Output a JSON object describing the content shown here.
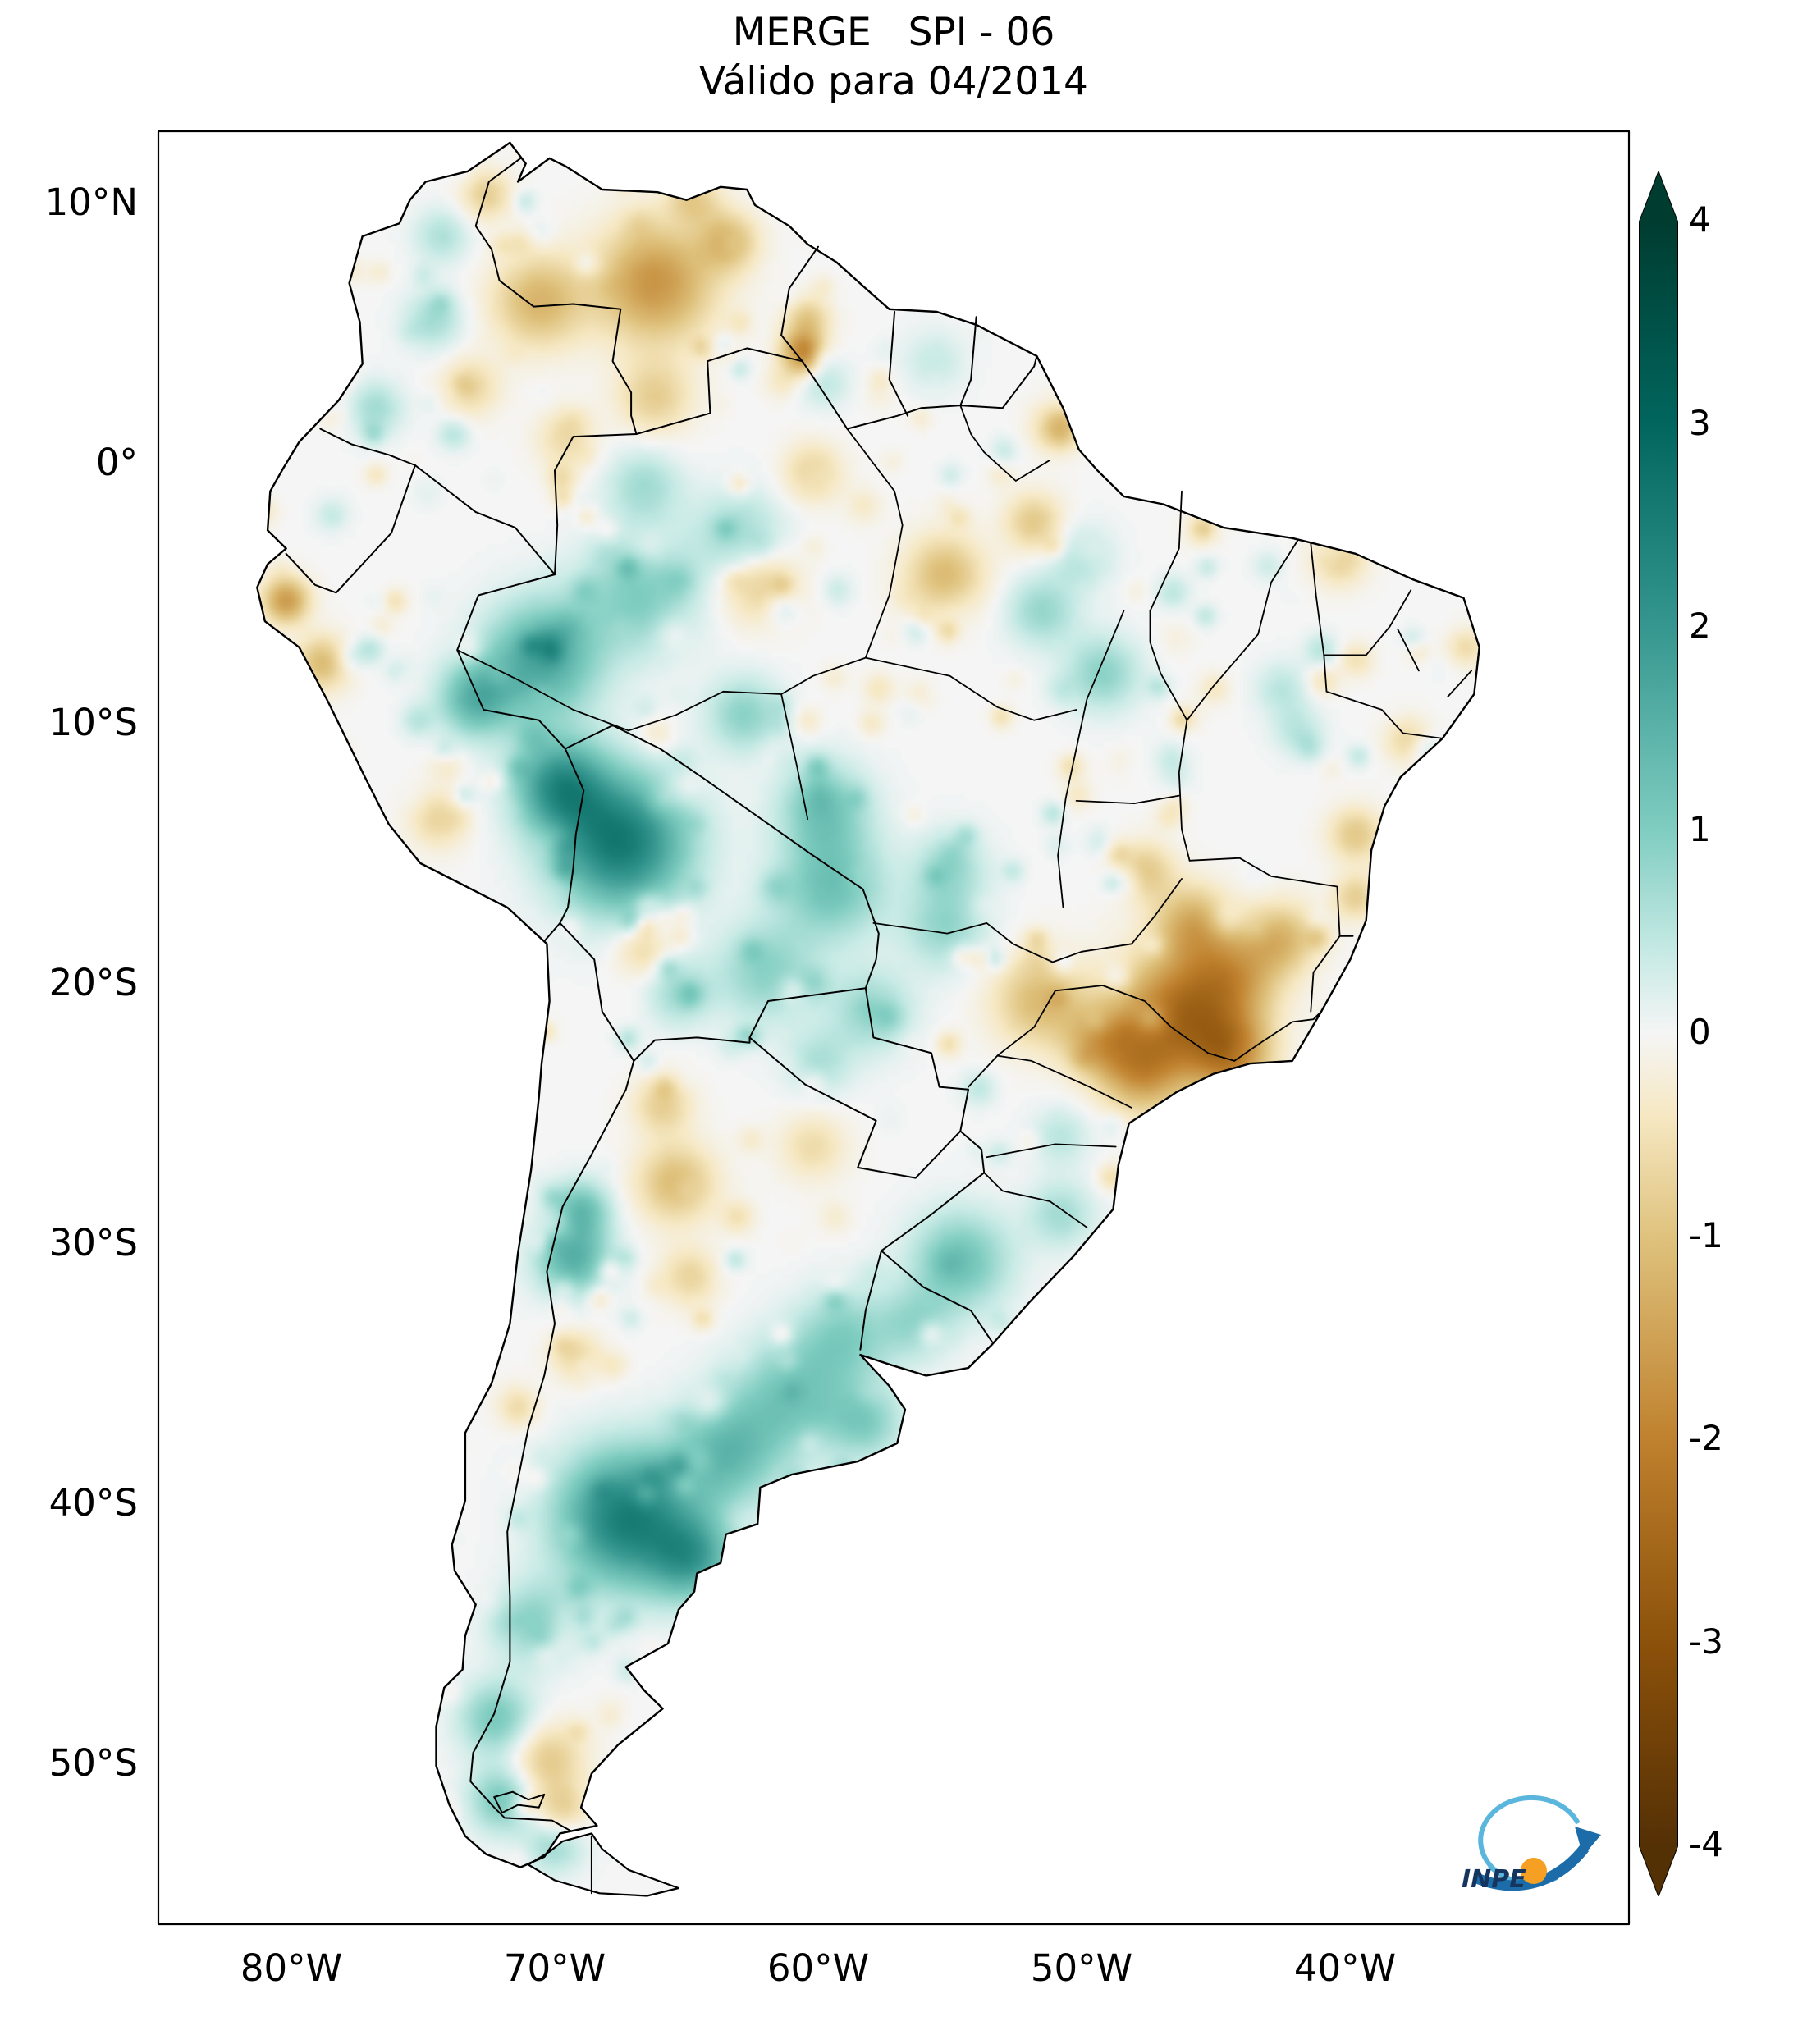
{
  "header": {
    "title": "MERGE   SPI - 06",
    "subtitle": "Válido para 04/2014"
  },
  "axes": {
    "lat_ticks": [
      {
        "label": "10°N",
        "lat": 10
      },
      {
        "label": "0°",
        "lat": 0
      },
      {
        "label": "10°S",
        "lat": -10
      },
      {
        "label": "20°S",
        "lat": -20
      },
      {
        "label": "30°S",
        "lat": -30
      },
      {
        "label": "40°S",
        "lat": -40
      },
      {
        "label": "50°S",
        "lat": -50
      }
    ],
    "lon_ticks": [
      {
        "label": "80°W",
        "lon": -80
      },
      {
        "label": "70°W",
        "lon": -70
      },
      {
        "label": "60°W",
        "lon": -60
      },
      {
        "label": "50°W",
        "lon": -50
      },
      {
        "label": "40°W",
        "lon": -40
      }
    ]
  },
  "colorbar": {
    "ticks": [
      "4",
      "3",
      "2",
      "1",
      "0",
      "-1",
      "-2",
      "-3",
      "-4"
    ],
    "range": [
      -4,
      4
    ],
    "extend": "both",
    "colormap": "BrBG",
    "stops": [
      {
        "v": -4,
        "c": "#543005"
      },
      {
        "v": -3,
        "c": "#8c510a"
      },
      {
        "v": -2,
        "c": "#bf812d"
      },
      {
        "v": -1,
        "c": "#dfc27d"
      },
      {
        "v": -0.4,
        "c": "#f6e8c3"
      },
      {
        "v": 0,
        "c": "#f5f5f5"
      },
      {
        "v": 0.4,
        "c": "#c7eae5"
      },
      {
        "v": 1,
        "c": "#80cdc1"
      },
      {
        "v": 2,
        "c": "#35978f"
      },
      {
        "v": 3,
        "c": "#01665e"
      },
      {
        "v": 4,
        "c": "#003c30"
      }
    ]
  },
  "logo": {
    "text": "INPE",
    "arc_color": "#5ab6dc",
    "arrow_color": "#1b6ca8",
    "ball_color": "#f5a023",
    "text_color": "#16355e"
  },
  "chart_data": {
    "type": "heatmap",
    "title": "MERGE   SPI - 06",
    "subtitle": "Válido para 04/2014",
    "variable": "SPI-06",
    "valid_for": "04/2014",
    "extent": {
      "lon": [
        -85.0,
        -29.6
      ],
      "lat": [
        -56.1,
        12.8
      ]
    },
    "colorbar_range": [
      -4,
      4
    ],
    "legend_position": "right",
    "regions_format": [
      "lat",
      "lon",
      "radius_deg",
      "spi"
    ],
    "regions": [
      [
        -14.5,
        -67.5,
        3.2,
        2.6
      ],
      [
        -12.3,
        -69.8,
        2.2,
        2.0
      ],
      [
        -7.5,
        -70.5,
        2.8,
        1.7
      ],
      [
        -9.0,
        -73.0,
        1.8,
        1.4
      ],
      [
        -5.0,
        -66.8,
        2.8,
        1.0
      ],
      [
        -2.8,
        -63.0,
        2.2,
        0.8
      ],
      [
        -16.2,
        -59.5,
        2.6,
        1.2
      ],
      [
        -13.2,
        -59.8,
        2.2,
        1.1
      ],
      [
        -19.5,
        -62.0,
        2.4,
        0.9
      ],
      [
        -21.0,
        -58.0,
        2.0,
        0.8
      ],
      [
        -17.8,
        -55.2,
        2.0,
        0.8
      ],
      [
        -15.5,
        -55.0,
        1.8,
        0.7
      ],
      [
        -8.0,
        -49.2,
        1.8,
        0.9
      ],
      [
        -5.6,
        -51.5,
        1.7,
        0.8
      ],
      [
        -3.5,
        -50.0,
        1.5,
        0.6
      ],
      [
        -40.5,
        -67.3,
        3.2,
        2.5
      ],
      [
        -42.0,
        -64.8,
        2.0,
        1.6
      ],
      [
        -38.0,
        -63.5,
        2.6,
        1.3
      ],
      [
        -35.8,
        -61.0,
        2.8,
        1.1
      ],
      [
        -33.5,
        -59.0,
        2.3,
        0.9
      ],
      [
        -36.8,
        -58.2,
        1.8,
        0.9
      ],
      [
        -30.6,
        -54.6,
        2.4,
        1.2
      ],
      [
        -33.0,
        -56.3,
        1.8,
        0.7
      ],
      [
        -28.8,
        -50.8,
        1.6,
        0.7
      ],
      [
        -25.8,
        -50.8,
        1.4,
        0.5
      ],
      [
        -30.5,
        -69.3,
        1.8,
        1.5
      ],
      [
        -28.6,
        -69.0,
        1.4,
        1.2
      ],
      [
        -44.5,
        -70.8,
        2.0,
        0.9
      ],
      [
        -48.2,
        -72.2,
        1.8,
        1.1
      ],
      [
        -51.3,
        -72.0,
        1.6,
        1.1
      ],
      [
        -53.0,
        -70.0,
        1.4,
        0.8
      ],
      [
        5.6,
        -74.6,
        1.4,
        0.7
      ],
      [
        2.2,
        -76.8,
        1.3,
        0.7
      ],
      [
        8.8,
        -74.3,
        1.3,
        0.6
      ],
      [
        -0.8,
        -66.6,
        1.8,
        0.7
      ],
      [
        -9.6,
        -62.8,
        1.8,
        0.9
      ],
      [
        -8.6,
        -42.4,
        1.3,
        0.5
      ],
      [
        -10.2,
        -41.8,
        1.2,
        0.5
      ],
      [
        4.0,
        -55.6,
        1.5,
        0.4
      ],
      [
        -20.3,
        -65.3,
        1.6,
        0.7
      ],
      [
        -23.0,
        -60.0,
        1.6,
        0.6
      ],
      [
        3.2,
        -59.8,
        1.2,
        0.5
      ],
      [
        -21.3,
        -46.3,
        3.0,
        -2.4
      ],
      [
        -22.6,
        -44.3,
        1.8,
        -1.6
      ],
      [
        -19.6,
        -44.3,
        2.2,
        -1.3
      ],
      [
        -23.4,
        -47.8,
        1.8,
        -1.2
      ],
      [
        -22.2,
        -49.3,
        1.7,
        -1.2
      ],
      [
        -20.6,
        -51.6,
        2.2,
        -1.1
      ],
      [
        -17.6,
        -45.8,
        1.8,
        -1.2
      ],
      [
        -18.2,
        -42.4,
        1.7,
        -1.1
      ],
      [
        -15.6,
        -47.6,
        1.4,
        -0.9
      ],
      [
        7.0,
        -66.2,
        2.8,
        -1.7
      ],
      [
        6.3,
        -70.6,
        2.2,
        -1.2
      ],
      [
        8.6,
        -63.4,
        1.4,
        -1.1
      ],
      [
        4.3,
        -60.6,
        1.0,
        -2.0
      ],
      [
        2.6,
        -66.2,
        1.8,
        -0.8
      ],
      [
        10.4,
        -72.6,
        1.2,
        -0.8
      ],
      [
        10.2,
        -64.6,
        1.2,
        -0.7
      ],
      [
        -4.5,
        -62.3,
        1.9,
        -0.9
      ],
      [
        -0.3,
        -60.2,
        1.4,
        -0.8
      ],
      [
        -4.2,
        -55.2,
        1.9,
        -1.1
      ],
      [
        -2.2,
        -51.8,
        1.4,
        -0.9
      ],
      [
        1.5,
        -51.0,
        1.2,
        -0.7
      ],
      [
        -5.2,
        -80.2,
        1.1,
        -1.6
      ],
      [
        -7.6,
        -78.8,
        1.3,
        -1.1
      ],
      [
        -13.6,
        -74.4,
        1.4,
        -0.7
      ],
      [
        -18.6,
        -66.6,
        1.4,
        -0.7
      ],
      [
        -27.6,
        -65.4,
        1.9,
        -1.1
      ],
      [
        -24.6,
        -65.9,
        1.4,
        -0.8
      ],
      [
        -31.2,
        -64.9,
        1.4,
        -0.7
      ],
      [
        -34.2,
        -69.2,
        1.2,
        -0.7
      ],
      [
        -49.8,
        -70.3,
        1.8,
        -0.9
      ],
      [
        -51.8,
        -69.8,
        1.3,
        -0.8
      ],
      [
        -3.6,
        -40.2,
        1.3,
        -0.8
      ],
      [
        -10.6,
        -37.6,
        1.1,
        -0.7
      ],
      [
        -14.2,
        -39.6,
        1.3,
        -0.9
      ],
      [
        -16.6,
        -39.6,
        1.1,
        -0.8
      ],
      [
        -7.0,
        -35.4,
        0.9,
        -0.6
      ],
      [
        3.0,
        -73.2,
        1.4,
        -0.7
      ],
      [
        1.0,
        -69.6,
        1.4,
        -0.6
      ],
      [
        5.6,
        -60.4,
        1.1,
        -0.9
      ],
      [
        -26.2,
        -60.2,
        1.6,
        -0.6
      ],
      [
        -36.2,
        -71.4,
        1.0,
        -0.6
      ]
    ]
  }
}
